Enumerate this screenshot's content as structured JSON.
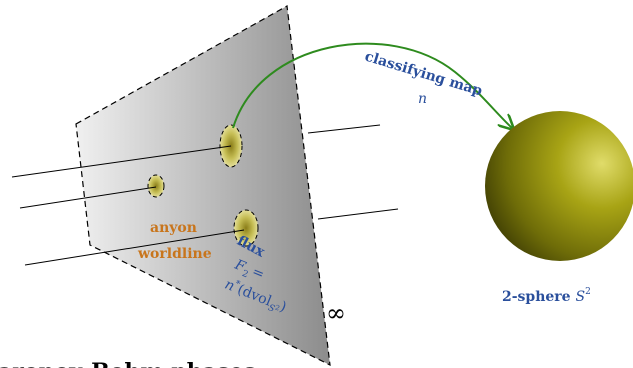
{
  "labels": {
    "classifying_map": "classifying map",
    "map_symbol": "n",
    "anyon": "anyon",
    "worldline": "worldline",
    "flux": "flux",
    "flux_formula_line1": "F",
    "flux_formula_sub": "2",
    "flux_formula_eq": "=",
    "flux_formula_line2_a": "n",
    "flux_formula_line2_star": "*",
    "flux_formula_line2_b": "(dvol",
    "flux_formula_line2_sub": "S",
    "flux_formula_line2_subsup": "2",
    "flux_formula_line2_c": ")",
    "infinity": "∞",
    "sphere_label": "2-sphere ",
    "sphere_symbol": "S",
    "sphere_exponent": "2",
    "caption_fragment": "aronov-Bohm phases"
  },
  "colors": {
    "orange_text": "#c8751c",
    "blue_text": "#2a4f9c",
    "arrow_green": "#2e8b1e",
    "sphere_highlight": "#d6d34a",
    "sphere_shadow": "#3f3f05",
    "flux_spot": "#c9c25a"
  }
}
